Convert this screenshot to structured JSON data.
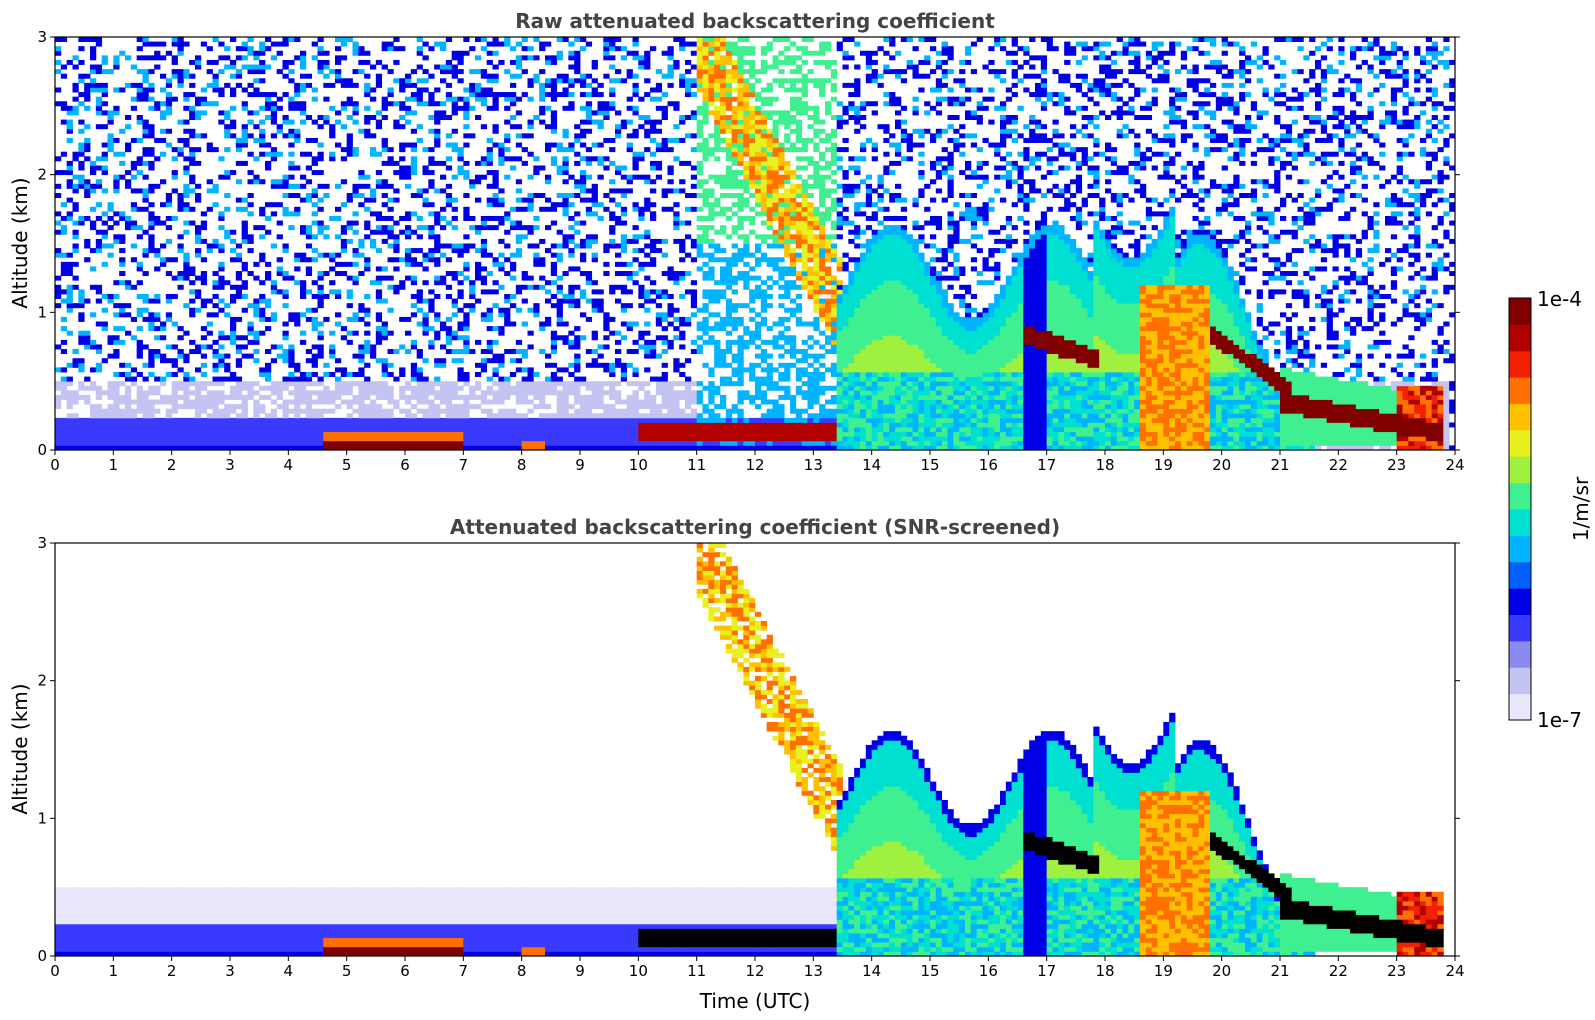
{
  "colors": {
    "title": "#444444",
    "colormap": [
      "#e8e8fa",
      "#c4c4f2",
      "#8a8af0",
      "#3a3aff",
      "#0000e6",
      "#0060ff",
      "#00b4ff",
      "#00e0d0",
      "#40f090",
      "#a0f040",
      "#e8f020",
      "#ffc000",
      "#ff7000",
      "#f02000",
      "#b00000",
      "#800000"
    ]
  },
  "chart_data": [
    {
      "type": "heatmap",
      "title": "Raw attenuated backscattering coefficient",
      "xlabel": "",
      "ylabel": "Altitude (km)",
      "xlim": [
        0,
        24
      ],
      "ylim": [
        0,
        3
      ],
      "xticks": [
        "0",
        "1",
        "2",
        "3",
        "4",
        "5",
        "6",
        "7",
        "8",
        "9",
        "10",
        "11",
        "12",
        "13",
        "14",
        "15",
        "16",
        "17",
        "18",
        "19",
        "20",
        "21",
        "22",
        "23",
        "24"
      ],
      "yticks": [
        "0",
        "1",
        "2",
        "3"
      ],
      "features": [
        {
          "description_kind": "boundary-layer-aerosol",
          "time_range": [
            0,
            13.4
          ],
          "altitude_top": 0.22,
          "level": 3
        },
        {
          "description_kind": "low-dense-layer",
          "time_range": [
            4.6,
            7.0
          ],
          "altitude_top": 0.12,
          "level": 15
        },
        {
          "description_kind": "low-dense-layer",
          "time_range": [
            10.0,
            13.4
          ],
          "altitude_top": 0.2,
          "level": 14
        },
        {
          "description_kind": "falling-layer",
          "time_range": [
            11.0,
            13.4
          ],
          "altitude_from": 3.0,
          "altitude_to": 1.0,
          "level": 10
        },
        {
          "description_kind": "convective-mixed-layer",
          "time_range": [
            13.4,
            21.5
          ],
          "altitude_top": 1.8,
          "level": 9
        },
        {
          "description_kind": "cloud-band",
          "time_range": [
            16.6,
            17.9
          ],
          "altitude": 0.68,
          "level": 15
        },
        {
          "description_kind": "cloud-band",
          "time_range": [
            19.8,
            21.2
          ],
          "altitude": 0.6,
          "level": 15
        },
        {
          "description_kind": "descending-layer",
          "time_range": [
            21.0,
            23.8
          ],
          "altitude_from": 0.4,
          "altitude_to": 0.1,
          "level": 14
        }
      ]
    },
    {
      "type": "heatmap",
      "title": "Attenuated backscattering coefficient (SNR-screened)",
      "xlabel": "Time (UTC)",
      "ylabel": "Altitude (km)",
      "xlim": [
        0,
        24
      ],
      "ylim": [
        0,
        3
      ],
      "xticks": [
        "0",
        "1",
        "2",
        "3",
        "4",
        "5",
        "6",
        "7",
        "8",
        "9",
        "10",
        "11",
        "12",
        "13",
        "14",
        "15",
        "16",
        "17",
        "18",
        "19",
        "20",
        "21",
        "22",
        "23",
        "24"
      ],
      "yticks": [
        "0",
        "1",
        "2",
        "3"
      ],
      "features": [
        {
          "description_kind": "screened-aerosol",
          "time_range": [
            0,
            13.4
          ],
          "altitude_top": 0.5,
          "level": 1
        },
        {
          "description_kind": "boundary-layer-aerosol",
          "time_range": [
            0,
            13.4
          ],
          "altitude_top": 0.22,
          "level": 3
        },
        {
          "description_kind": "low-dense-layer",
          "time_range": [
            4.6,
            7.0
          ],
          "altitude_top": 0.12,
          "level": 15
        },
        {
          "description_kind": "falling-layer",
          "time_range": [
            11.0,
            13.4
          ],
          "altitude_from": 3.0,
          "altitude_to": 1.0,
          "level": 10
        },
        {
          "description_kind": "convective-mixed-layer",
          "time_range": [
            13.4,
            21.5
          ],
          "altitude_top": 1.8,
          "level": 9
        },
        {
          "description_kind": "saturated-band",
          "time_range": [
            16.6,
            17.9
          ],
          "altitude": 0.68,
          "level": 16
        },
        {
          "description_kind": "saturated-band",
          "time_range": [
            19.8,
            21.2
          ],
          "altitude": 0.6,
          "level": 16
        },
        {
          "description_kind": "descending-layer",
          "time_range": [
            21.0,
            23.8
          ],
          "altitude_from": 0.4,
          "altitude_to": 0.1,
          "level": 16
        }
      ]
    }
  ],
  "colorbar": {
    "label": "1/m/sr",
    "max_label": "1e-4",
    "min_label": "1e-7",
    "scale": "log",
    "range": [
      1e-07,
      0.0001
    ]
  }
}
